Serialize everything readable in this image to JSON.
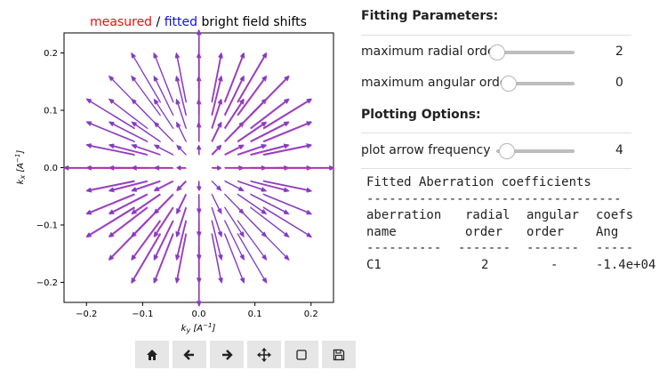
{
  "plot": {
    "title": {
      "measured": "measured",
      "sep": " / ",
      "fitted": "fitted",
      "rest": "bright field shifts"
    },
    "colors": {
      "measured": "#e81010",
      "fitted": "#1010e0",
      "arrow_measured": "#cc44aa",
      "arrow_fitted": "#7a3ec8"
    },
    "xlabel_base": "k",
    "xlabel_sub": "y",
    "xlabel_unit": "[A",
    "xlabel_exp": "−1",
    "xlabel_close": "]",
    "ylabel_base": "k",
    "ylabel_sub": "x",
    "ylabel_unit": "[A",
    "ylabel_exp": "−1",
    "ylabel_close": "]"
  },
  "chart_data": {
    "type": "quiver",
    "title": "measured / fitted bright field shifts",
    "xlabel": "k_y [A^-1]",
    "ylabel": "k_x [A^-1]",
    "xlim": [
      -0.24,
      0.24
    ],
    "ylim": [
      -0.235,
      0.235
    ],
    "xticks": [
      -0.2,
      -0.1,
      0.0,
      0.1,
      0.2
    ],
    "yticks": [
      0.2,
      0.1,
      0.0,
      -0.1,
      -0.2
    ],
    "xtick_labels": [
      "−0.2",
      "−0.1",
      "0.0",
      "0.1",
      "0.2"
    ],
    "ytick_labels": [
      "0.2",
      "0.1",
      "0.0",
      "−0.1",
      "−0.2"
    ],
    "grid": false,
    "grid_step": 0.0316,
    "grid_radius": 0.19,
    "series": [
      {
        "name": "measured",
        "color": "#cc44aa"
      },
      {
        "name": "fitted",
        "color": "#7a3ec8"
      }
    ]
  },
  "toolbar": {
    "buttons": [
      {
        "name": "home-button",
        "icon": "home-icon"
      },
      {
        "name": "back-button",
        "icon": "arrow-left-icon"
      },
      {
        "name": "forward-button",
        "icon": "arrow-right-icon"
      },
      {
        "name": "pan-button",
        "icon": "move-icon"
      },
      {
        "name": "zoom-button",
        "icon": "zoom-rect-icon"
      },
      {
        "name": "save-button",
        "icon": "floppy-disk-icon"
      }
    ]
  },
  "panel": {
    "fitting_title": "Fitting Parameters:",
    "radial_label": "maximum radial order",
    "radial_value": "2",
    "radial_fraction": 0.0,
    "angular_label": "maximum angular order",
    "angular_value": "0",
    "angular_fraction": 0.0,
    "plotting_title": "Plotting Options:",
    "arrow_freq_label": "plot arrow frequency",
    "arrow_freq_value": "4",
    "arrow_freq_fraction": 0.12
  },
  "table": {
    "title": "Fitted Aberration coefficients",
    "rule": "----------------------------------",
    "header1": [
      "aberration",
      "radial",
      "angular",
      "coefs"
    ],
    "header2": [
      "name",
      "order",
      "order",
      "Ang"
    ],
    "dashes": [
      "----------",
      "-------",
      "-------",
      "-----"
    ],
    "rows": [
      [
        "C1",
        "2",
        "-",
        "-1.4e+04"
      ]
    ]
  }
}
